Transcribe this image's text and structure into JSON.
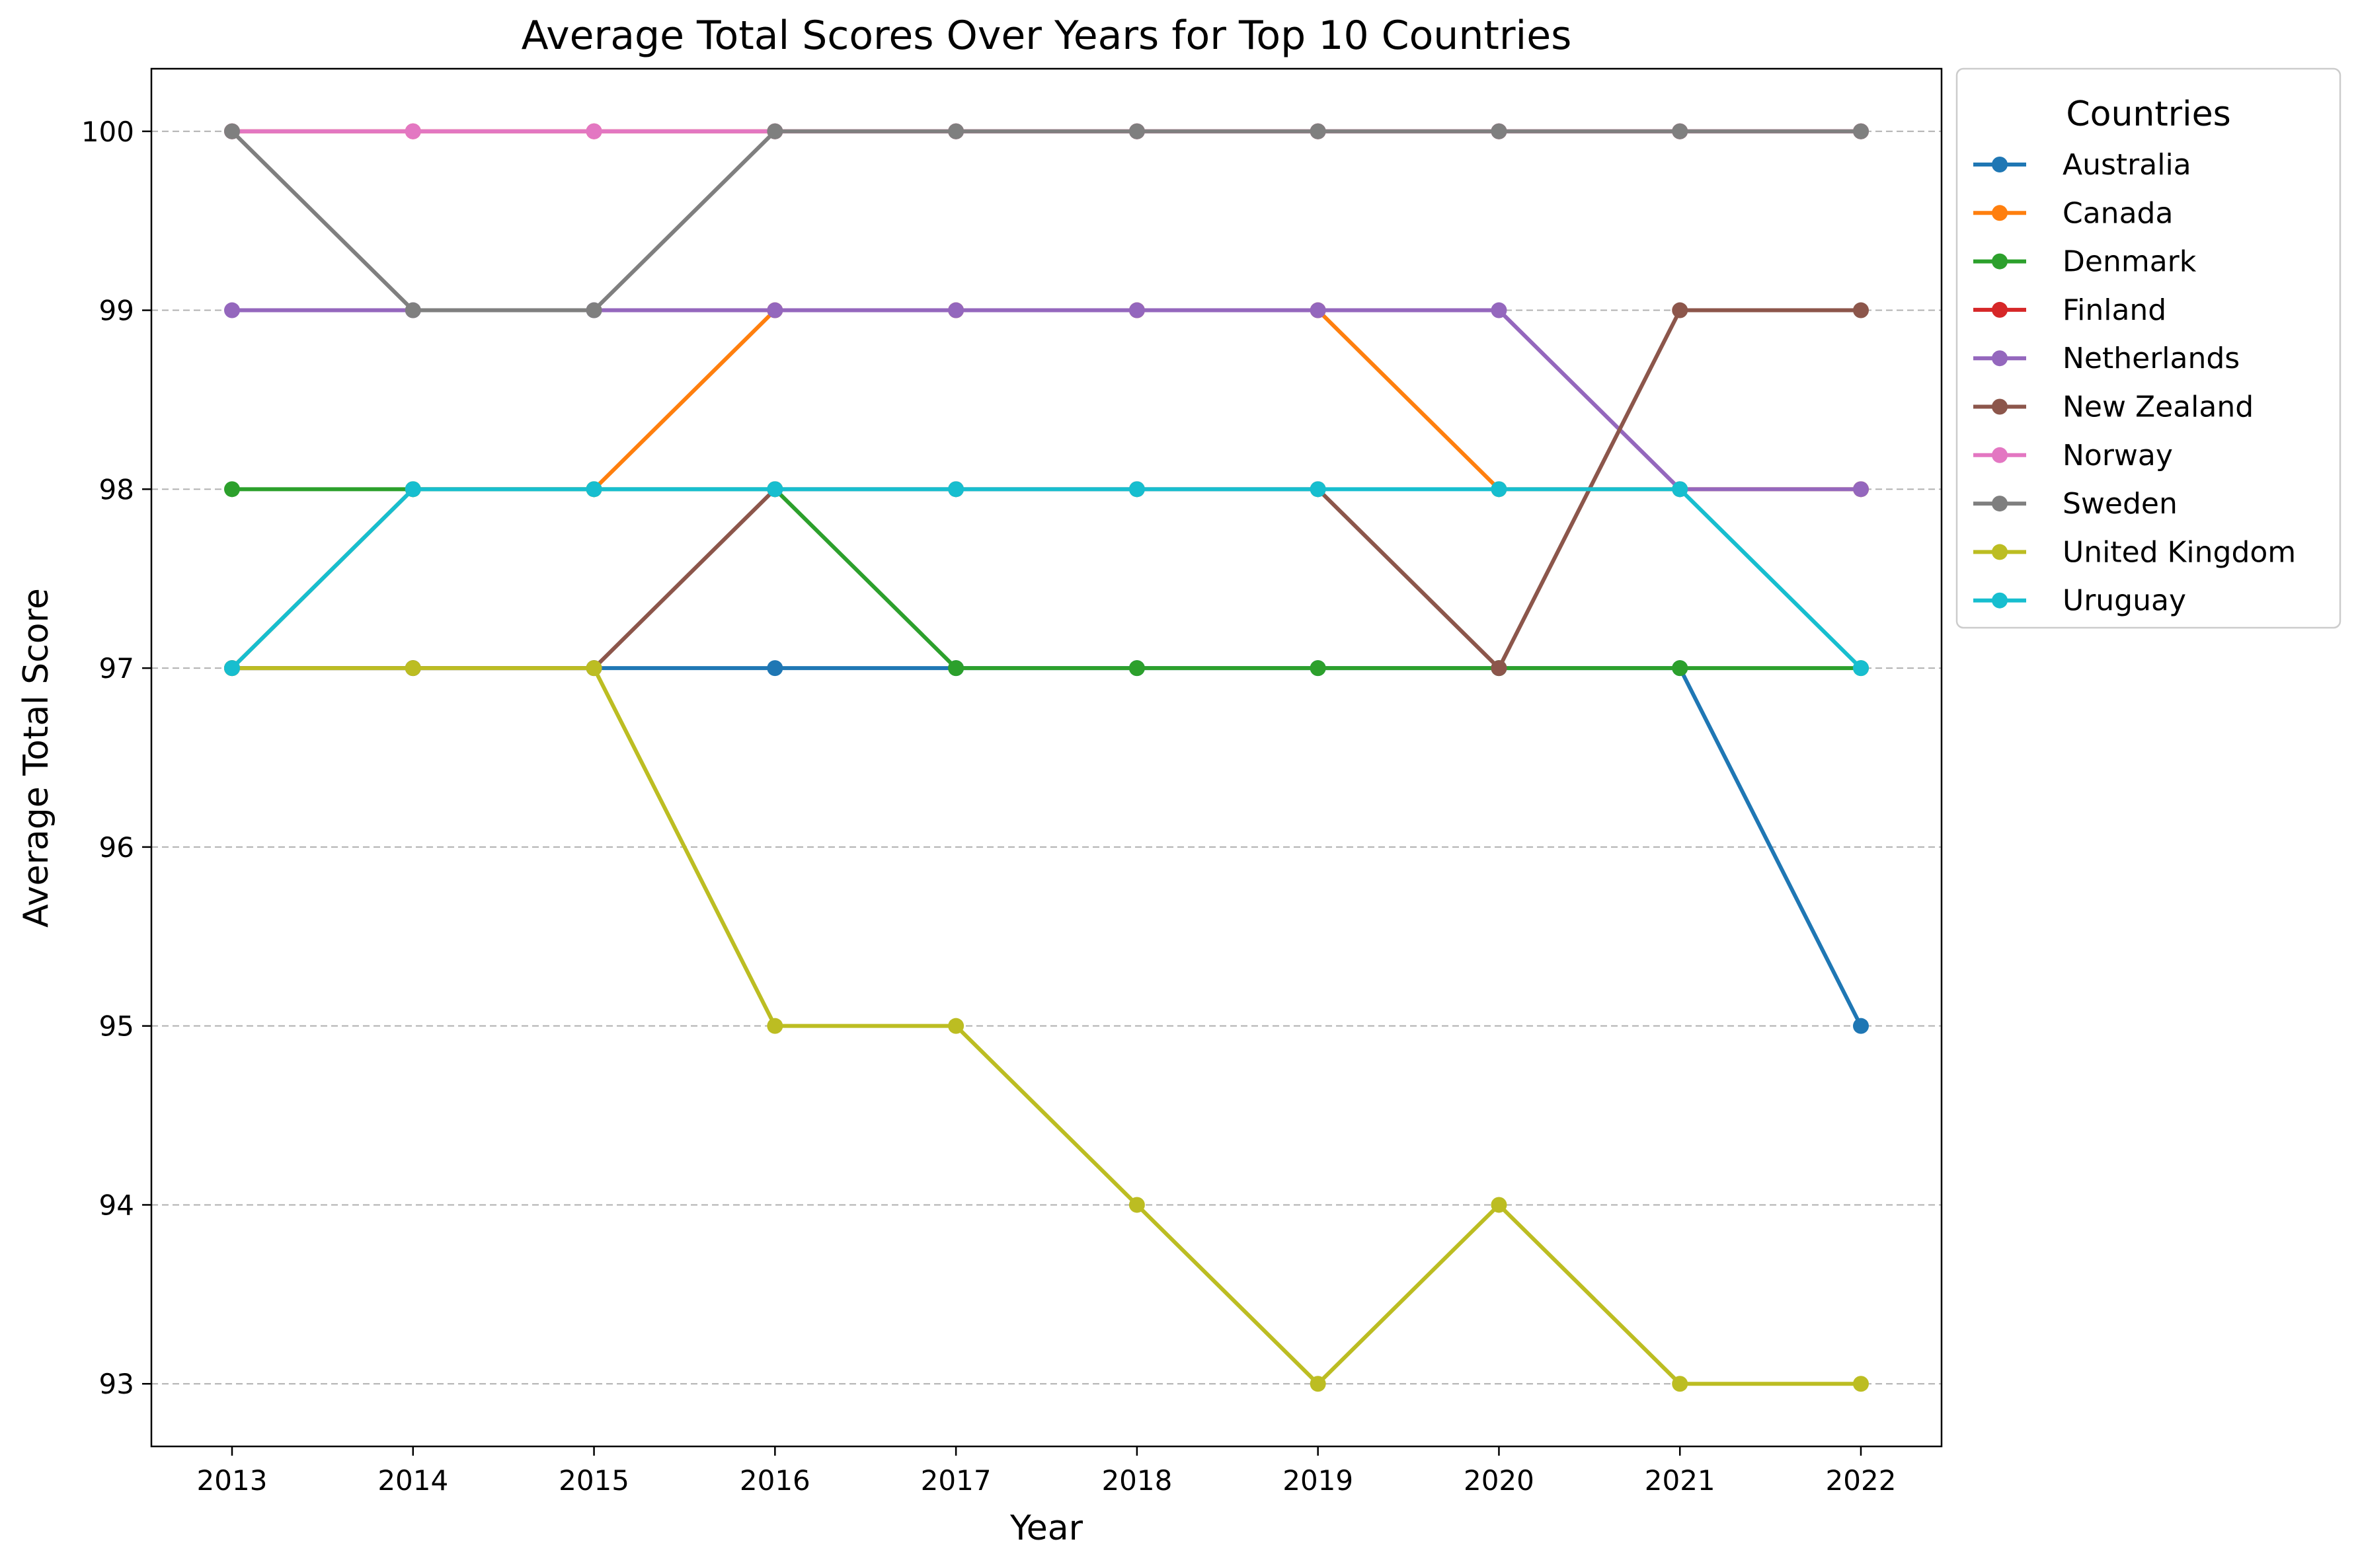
{
  "chart_data": {
    "type": "line",
    "title": "Average Total Scores Over Years for Top 10 Countries",
    "xlabel": "Year",
    "ylabel": "Average Total Score",
    "x": [
      2013,
      2014,
      2015,
      2016,
      2017,
      2018,
      2019,
      2020,
      2021,
      2022
    ],
    "x_tick_labels": [
      "2013",
      "2014",
      "2015",
      "2016",
      "2017",
      "2018",
      "2019",
      "2020",
      "2021",
      "2022"
    ],
    "ylim": [
      92.65,
      100.35
    ],
    "y_ticks": [
      93,
      94,
      95,
      96,
      97,
      98,
      99,
      100
    ],
    "y_tick_labels": [
      "93",
      "94",
      "95",
      "96",
      "97",
      "98",
      "99",
      "100"
    ],
    "grid": "horizontal dashed",
    "legend": {
      "title": "Countries",
      "placement": "outside right, top"
    },
    "series": [
      {
        "name": "Australia",
        "color": "#1f77b4",
        "values": [
          97,
          97,
          97,
          97,
          97,
          97,
          97,
          97,
          97,
          95
        ]
      },
      {
        "name": "Canada",
        "color": "#ff7f0e",
        "values": [
          97,
          98,
          98,
          99,
          99,
          99,
          99,
          98,
          98,
          98
        ]
      },
      {
        "name": "Denmark",
        "color": "#2ca02c",
        "values": [
          98,
          98,
          98,
          98,
          97,
          97,
          97,
          97,
          97,
          97
        ]
      },
      {
        "name": "Finland",
        "color": "#d62728",
        "values": [
          100,
          100,
          100,
          100,
          100,
          100,
          100,
          100,
          100,
          100
        ]
      },
      {
        "name": "Netherlands",
        "color": "#9467bd",
        "values": [
          99,
          99,
          99,
          99,
          99,
          99,
          99,
          99,
          98,
          98
        ]
      },
      {
        "name": "New Zealand",
        "color": "#8c564b",
        "values": [
          97,
          97,
          97,
          98,
          98,
          98,
          98,
          97,
          99,
          99
        ]
      },
      {
        "name": "Norway",
        "color": "#e377c2",
        "values": [
          100,
          100,
          100,
          100,
          100,
          100,
          100,
          100,
          100,
          100
        ]
      },
      {
        "name": "Sweden",
        "color": "#7f7f7f",
        "values": [
          100,
          99,
          99,
          100,
          100,
          100,
          100,
          100,
          100,
          100
        ]
      },
      {
        "name": "United Kingdom",
        "color": "#bcbd22",
        "values": [
          97,
          97,
          97,
          95,
          95,
          94,
          93,
          94,
          93,
          93
        ]
      },
      {
        "name": "Uruguay",
        "color": "#17becf",
        "values": [
          97,
          98,
          98,
          98,
          98,
          98,
          98,
          98,
          98,
          97
        ]
      }
    ]
  }
}
